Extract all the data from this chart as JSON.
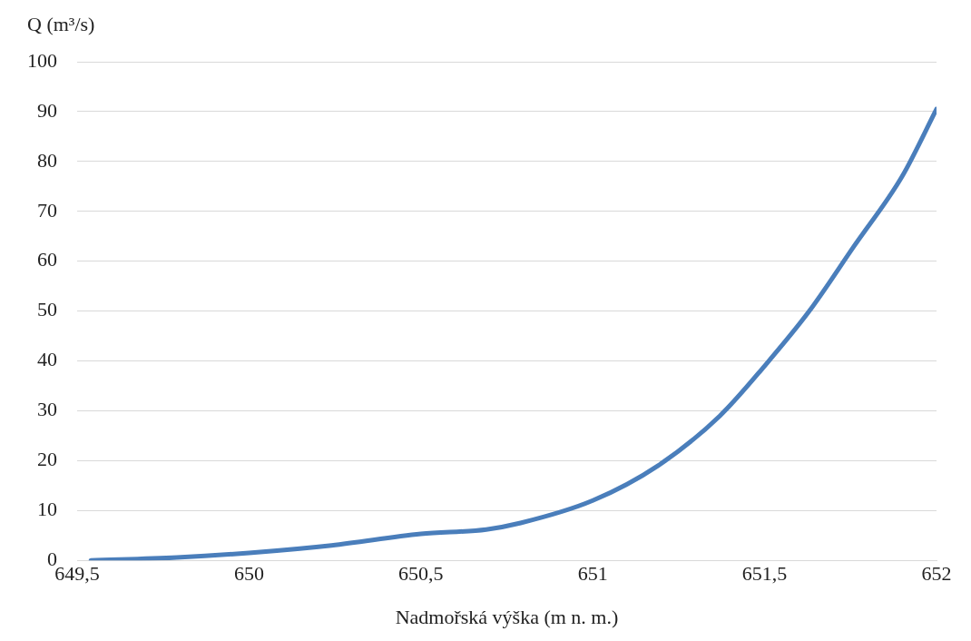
{
  "chart_data": {
    "type": "line",
    "ylabel": "Q (m³/s)",
    "xlabel": "Nadmořská výška (m n. m.)",
    "x": [
      649.54,
      649.79,
      650,
      650.24,
      650.5,
      650.69,
      650.79,
      651,
      651.19,
      651.37,
      651.5,
      651.63,
      651.76,
      651.9,
      652
    ],
    "series": [
      {
        "color": "#4a7ebb",
        "values": [
          0,
          0.6,
          1.5,
          3,
          5.3,
          6.2,
          7.5,
          12,
          19,
          29,
          39,
          50,
          63,
          77,
          90.5
        ]
      }
    ],
    "xlim": [
      649.5,
      652
    ],
    "xticks": [
      {
        "value": 649.5,
        "label": "649,5"
      },
      650,
      {
        "value": 650.5,
        "label": "650,5"
      },
      651,
      {
        "value": 651.5,
        "label": "651,5"
      },
      652
    ],
    "ylim": [
      0,
      100
    ],
    "yticks": [
      0,
      10,
      20,
      30,
      40,
      50,
      60,
      70,
      80,
      90,
      100
    ],
    "grid": "y",
    "marker": "none",
    "line_style": "solid",
    "legend": false
  }
}
